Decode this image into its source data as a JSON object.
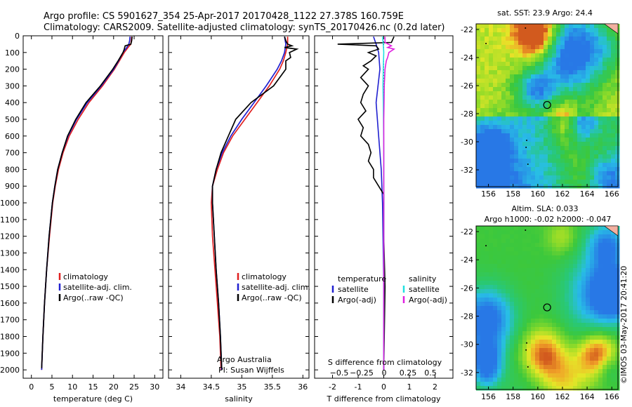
{
  "header": {
    "line1": "Argo profile: CS 5901627_354 25-Apr-2017 20170428_1122 27.378S 160.759E",
    "line2": "Climatology: CARS2009. Satellite-adjusted climatology: synTS_20170426.nc (0.2d later)"
  },
  "credit": {
    "group": "Argo Australia",
    "pi": "PI: Susan Wijffels",
    "stamp": "©IMOS 03-May-2017 20:41:20"
  },
  "colors": {
    "climatology": "#e02020",
    "satellite": "#2020d0",
    "argo": "#000000",
    "salinity_satellite": "#20e0e0",
    "salinity_argo": "#e020e0"
  },
  "chart_data": [
    {
      "type": "line",
      "name": "temperature-profile",
      "xlabel": "temperature (deg C)",
      "xlim": [
        -2,
        32
      ],
      "xticks": [
        0,
        5,
        10,
        15,
        20,
        25,
        30
      ],
      "ylim": [
        2050,
        0
      ],
      "yticks": [
        0,
        100,
        200,
        300,
        400,
        500,
        600,
        700,
        800,
        900,
        1000,
        1100,
        1200,
        1300,
        1400,
        1500,
        1600,
        1700,
        1800,
        1900,
        2000
      ],
      "legend": [
        "climatology",
        "satellite-adj. clim.",
        "Argo(..raw -QC)"
      ],
      "series": [
        {
          "name": "climatology",
          "depth": [
            5,
            30,
            50,
            70,
            100,
            150,
            200,
            300,
            400,
            500,
            600,
            700,
            800,
            900,
            1000,
            1200,
            1400,
            1600,
            1800,
            2000
          ],
          "values": [
            24.4,
            24.3,
            24.2,
            23.5,
            22.6,
            21.4,
            20.2,
            17.3,
            14.0,
            11.4,
            9.2,
            7.7,
            6.6,
            5.8,
            5.2,
            4.4,
            3.7,
            3.2,
            2.8,
            2.5
          ]
        },
        {
          "name": "satellite-adj. clim.",
          "depth": [
            5,
            30,
            50,
            70,
            100,
            150,
            200,
            300,
            400,
            500,
            600,
            700,
            800,
            900,
            1000,
            1200,
            1400,
            1600,
            1800,
            2000
          ],
          "values": [
            24.0,
            23.9,
            23.7,
            23.2,
            22.3,
            21.2,
            20.0,
            17.0,
            13.6,
            11.0,
            8.9,
            7.5,
            6.4,
            5.7,
            5.1,
            4.3,
            3.7,
            3.2,
            2.8,
            2.5
          ]
        },
        {
          "name": "Argo(..raw -QC)",
          "depth": [
            5,
            30,
            50,
            60,
            80,
            100,
            150,
            200,
            300,
            400,
            500,
            600,
            700,
            800,
            900,
            1000,
            1200,
            1400,
            1600,
            1800,
            1990
          ],
          "values": [
            24.5,
            24.4,
            24.2,
            22.8,
            22.6,
            22.3,
            21.1,
            19.8,
            16.8,
            13.3,
            10.8,
            8.8,
            7.5,
            6.4,
            5.7,
            5.1,
            4.3,
            3.7,
            3.2,
            2.8,
            2.5
          ]
        }
      ]
    },
    {
      "type": "line",
      "name": "salinity-profile",
      "xlabel": "salinity",
      "xlim": [
        33.8,
        36.1
      ],
      "xticks": [
        34,
        34.5,
        35,
        35.5,
        36
      ],
      "ylim": [
        2050,
        0
      ],
      "legend": [
        "climatology",
        "satellite-adj. clim.",
        "Argo(..raw -QC)"
      ],
      "series": [
        {
          "name": "climatology",
          "depth": [
            5,
            50,
            100,
            150,
            200,
            300,
            400,
            500,
            600,
            700,
            800,
            900,
            1000,
            1200,
            1400,
            1600,
            1800,
            2000
          ],
          "values": [
            35.75,
            35.75,
            35.72,
            35.68,
            35.62,
            35.45,
            35.25,
            35.05,
            34.85,
            34.7,
            34.6,
            34.52,
            34.5,
            34.52,
            34.56,
            34.6,
            34.64,
            34.66
          ]
        },
        {
          "name": "satellite-adj. clim.",
          "depth": [
            5,
            50,
            100,
            150,
            200,
            300,
            400,
            500,
            600,
            700,
            800,
            900,
            1000,
            1200,
            1400,
            1600,
            1800,
            2000
          ],
          "values": [
            35.7,
            35.72,
            35.7,
            35.65,
            35.58,
            35.4,
            35.2,
            35.0,
            34.82,
            34.68,
            34.58,
            34.52,
            34.52,
            34.55,
            34.58,
            34.62,
            34.65,
            34.67
          ]
        },
        {
          "name": "Argo(..raw -QC)",
          "depth": [
            5,
            30,
            50,
            60,
            70,
            80,
            100,
            130,
            150,
            200,
            250,
            300,
            400,
            500,
            600,
            700,
            800,
            900,
            1000,
            1200,
            1400,
            1600,
            1800,
            1990
          ],
          "values": [
            35.7,
            35.72,
            35.75,
            35.82,
            35.7,
            35.9,
            35.78,
            35.8,
            35.72,
            35.72,
            35.62,
            35.52,
            35.15,
            34.9,
            34.78,
            34.66,
            34.58,
            34.52,
            34.52,
            34.55,
            34.58,
            34.62,
            34.65,
            34.67
          ]
        }
      ]
    },
    {
      "type": "line",
      "name": "difference-profile",
      "xlabel": "T difference from climatology",
      "xlabel_top": "S difference from climatology",
      "xlim": [
        -2.7,
        2.7
      ],
      "xticks": [
        -2,
        -1,
        0,
        1,
        2
      ],
      "s_ticks": [
        -0.5,
        -0.25,
        0,
        0.25,
        0.5
      ],
      "ylim": [
        2050,
        0
      ],
      "legend_temperature": [
        "temperature",
        "satellite",
        "Argo(-adj)"
      ],
      "legend_salinity": [
        "salinity",
        "satellite",
        "Argo(-adj)"
      ],
      "series": [
        {
          "name": "temperature satellite",
          "depth": [
            5,
            50,
            100,
            200,
            400,
            600,
            800,
            1000,
            1500,
            2000
          ],
          "values": [
            -0.4,
            -0.3,
            -0.2,
            -0.15,
            -0.3,
            -0.2,
            -0.1,
            -0.05,
            0,
            0
          ]
        },
        {
          "name": "temperature Argo(-adj)",
          "depth": [
            5,
            40,
            50,
            60,
            80,
            100,
            120,
            150,
            180,
            200,
            250,
            300,
            350,
            400,
            450,
            500,
            550,
            600,
            650,
            700,
            750,
            800,
            850,
            900,
            950,
            1000,
            1200,
            1500,
            2000
          ],
          "values": [
            0.4,
            0.3,
            -1.8,
            -0.3,
            -0.2,
            -0.6,
            -0.3,
            -0.5,
            -0.8,
            -0.6,
            -0.9,
            -0.6,
            -0.8,
            -0.9,
            -0.7,
            -1.0,
            -0.8,
            -0.9,
            -0.6,
            -0.5,
            -0.6,
            -0.4,
            -0.4,
            -0.2,
            0,
            0,
            0,
            0.05,
            0
          ]
        },
        {
          "name": "salinity satellite",
          "depth": [
            5,
            50,
            100,
            150,
            200,
            300,
            400,
            500,
            700,
            900,
            1200,
            1500,
            2000
          ],
          "values": [
            -0.05,
            -0.02,
            0.0,
            -0.01,
            -0.02,
            -0.03,
            -0.02,
            -0.01,
            0.0,
            0.0,
            0.0,
            0.0,
            0.0
          ]
        },
        {
          "name": "salinity Argo(-adj)",
          "depth": [
            5,
            40,
            60,
            70,
            80,
            100,
            130,
            150,
            200,
            300,
            400,
            500,
            600,
            700,
            900,
            1200,
            2000
          ],
          "values": [
            0.05,
            0.05,
            0.3,
            0.15,
            0.4,
            0.2,
            0.15,
            0.1,
            0.05,
            0.02,
            0.01,
            0.0,
            0.0,
            0.0,
            0.0,
            0.0,
            0.0
          ]
        }
      ]
    },
    {
      "type": "heatmap",
      "name": "sst-map",
      "title": "sat. SST: 23.9 Argo: 24.4",
      "xticks": [
        156,
        158,
        160,
        162,
        164,
        166
      ],
      "yticks": [
        -22,
        -24,
        -26,
        -28,
        -30,
        -32
      ],
      "xlim": [
        155,
        166.5
      ],
      "ylim": [
        -33.2,
        -21.6
      ],
      "marker": {
        "lon": 160.759,
        "lat": -27.378
      }
    },
    {
      "type": "heatmap",
      "name": "sla-map",
      "title": "Altim. SLA: 0.033",
      "subtitle": "Argo h1000: -0.02 h2000: -0.047",
      "xticks": [
        156,
        158,
        160,
        162,
        164,
        166
      ],
      "yticks": [
        -22,
        -24,
        -26,
        -28,
        -30,
        -32
      ],
      "xlim": [
        155,
        166.5
      ],
      "ylim": [
        -33.2,
        -21.6
      ],
      "marker": {
        "lon": 160.759,
        "lat": -27.378
      }
    }
  ]
}
